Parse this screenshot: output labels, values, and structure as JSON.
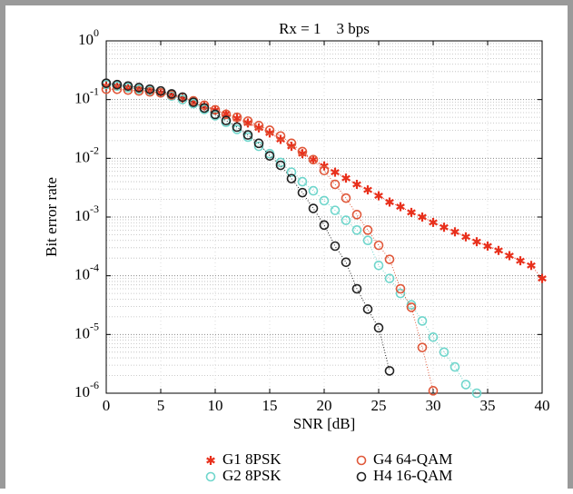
{
  "chart_data": {
    "type": "line",
    "title": "Rx = 1    3 bps",
    "xlabel": "SNR [dB]",
    "ylabel": "Bit error rate",
    "xlim": [
      0,
      40
    ],
    "xticks": [
      0,
      5,
      10,
      15,
      20,
      25,
      30,
      35,
      40
    ],
    "ylim": [
      1e-06,
      1
    ],
    "yscale": "log",
    "yticks": [
      {
        "value": 1e-06,
        "label": "10^-6"
      },
      {
        "value": 1e-05,
        "label": "10^-5"
      },
      {
        "value": 0.0001,
        "label": "10^-4"
      },
      {
        "value": 0.001,
        "label": "10^-3"
      },
      {
        "value": 0.01,
        "label": "10^-2"
      },
      {
        "value": 0.1,
        "label": "10^-1"
      },
      {
        "value": 1,
        "label": "10^0"
      }
    ],
    "grid": true,
    "series": [
      {
        "name": "G1 8PSK",
        "color": "#e8301c",
        "marker": "star",
        "x": [
          0,
          1,
          2,
          3,
          4,
          5,
          6,
          7,
          8,
          9,
          10,
          11,
          12,
          13,
          14,
          15,
          16,
          17,
          18,
          19,
          20,
          21,
          22,
          23,
          24,
          25,
          26,
          27,
          28,
          29,
          30,
          31,
          32,
          33,
          34,
          35,
          36,
          37,
          38,
          39,
          40
        ],
        "values": [
          0.17,
          0.17,
          0.16,
          0.15,
          0.14,
          0.13,
          0.12,
          0.105,
          0.09,
          0.078,
          0.066,
          0.057,
          0.048,
          0.04,
          0.033,
          0.027,
          0.021,
          0.016,
          0.012,
          0.0095,
          0.0074,
          0.0058,
          0.0046,
          0.0036,
          0.0029,
          0.0023,
          0.0018,
          0.0015,
          0.0012,
          0.001,
          0.00081,
          0.00067,
          0.00056,
          0.00046,
          0.00038,
          0.00032,
          0.00027,
          0.00022,
          0.00018,
          0.00015,
          9e-05
        ]
      },
      {
        "name": "G2 8PSK",
        "color": "#6fd6cc",
        "marker": "circle",
        "x": [
          0,
          1,
          2,
          3,
          4,
          5,
          6,
          7,
          8,
          9,
          10,
          11,
          12,
          13,
          14,
          15,
          16,
          17,
          18,
          19,
          20,
          21,
          22,
          23,
          24,
          25,
          26,
          27,
          28,
          29,
          30,
          31,
          32,
          33,
          34
        ],
        "values": [
          0.18,
          0.17,
          0.16,
          0.15,
          0.14,
          0.13,
          0.115,
          0.1,
          0.085,
          0.068,
          0.053,
          0.041,
          0.031,
          0.023,
          0.016,
          0.012,
          0.0085,
          0.0058,
          0.004,
          0.0028,
          0.0019,
          0.0013,
          0.00088,
          0.0006,
          0.0004,
          0.00015,
          9e-05,
          5e-05,
          3.2e-05,
          1.7e-05,
          9e-06,
          5e-06,
          2.8e-06,
          1.4e-06,
          1e-06
        ]
      },
      {
        "name": "G4 64-QAM",
        "color": "#e0583a",
        "marker": "circle",
        "x": [
          0,
          1,
          2,
          3,
          4,
          5,
          6,
          7,
          8,
          9,
          10,
          11,
          12,
          13,
          14,
          15,
          16,
          17,
          18,
          19,
          20,
          21,
          22,
          23,
          24,
          25,
          26,
          27,
          28,
          29,
          30
        ],
        "values": [
          0.15,
          0.15,
          0.145,
          0.14,
          0.135,
          0.13,
          0.12,
          0.11,
          0.095,
          0.08,
          0.067,
          0.056,
          0.05,
          0.043,
          0.036,
          0.03,
          0.024,
          0.018,
          0.013,
          0.0095,
          0.0062,
          0.0036,
          0.0021,
          0.0011,
          0.0006,
          0.00033,
          0.00019,
          6e-05,
          2.9e-05,
          6e-06,
          1.1e-06
        ]
      },
      {
        "name": "H4 16-QAM",
        "color": "#222222",
        "marker": "circle",
        "x": [
          0,
          1,
          2,
          3,
          4,
          5,
          6,
          7,
          8,
          9,
          10,
          11,
          12,
          13,
          14,
          15,
          16,
          17,
          18,
          19,
          20,
          21,
          22,
          23,
          24,
          25,
          26
        ],
        "values": [
          0.19,
          0.18,
          0.17,
          0.16,
          0.15,
          0.14,
          0.125,
          0.11,
          0.09,
          0.072,
          0.056,
          0.044,
          0.034,
          0.025,
          0.018,
          0.011,
          0.0076,
          0.0045,
          0.0026,
          0.0014,
          0.00073,
          0.00032,
          0.00017,
          6e-05,
          2.7e-05,
          1.3e-05,
          2.4e-06
        ]
      }
    ]
  }
}
